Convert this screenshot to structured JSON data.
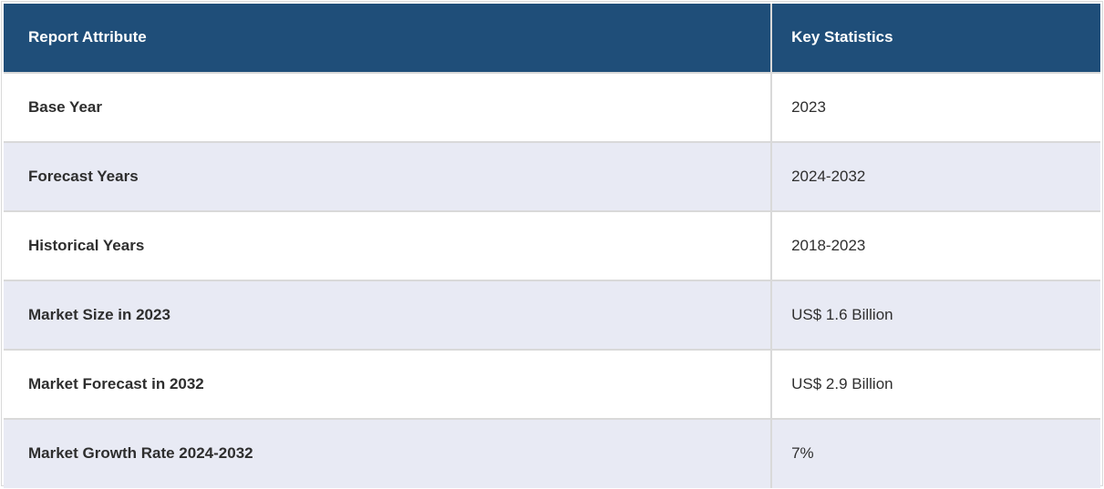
{
  "chart_data": {
    "type": "table",
    "columns": [
      "Report Attribute",
      "Key Statistics"
    ],
    "rows": [
      [
        "Base Year",
        "2023"
      ],
      [
        "Forecast Years",
        "2024-2032"
      ],
      [
        "Historical Years",
        "2018-2023"
      ],
      [
        "Market Size in 2023",
        "US$ 1.6 Billion"
      ],
      [
        "Market Forecast in 2032",
        "US$ 2.9 Billion"
      ],
      [
        "Market Growth Rate 2024-2032",
        "7%"
      ]
    ],
    "layout_hints": {
      "header_background": "#1F4E79",
      "alternate_row_background": "#E8EAF4",
      "row_background": "#FFFFFF",
      "border_color": "#D9D9D9",
      "column_widths_percent": [
        70,
        30
      ]
    }
  },
  "table": {
    "header": {
      "attribute_label": "Report Attribute",
      "statistics_label": "Key Statistics"
    },
    "rows": [
      {
        "attribute": "Base Year",
        "value": "2023"
      },
      {
        "attribute": "Forecast Years",
        "value": "2024-2032"
      },
      {
        "attribute": "Historical Years",
        "value": "2018-2023"
      },
      {
        "attribute": "Market Size in 2023",
        "value": "US$ 1.6 Billion"
      },
      {
        "attribute": "Market Forecast in 2032",
        "value": "US$ 2.9 Billion"
      },
      {
        "attribute": "Market Growth Rate 2024-2032",
        "value": "7%"
      }
    ]
  },
  "colors": {
    "header_bg": "#1F4E79",
    "header_text": "#FFFFFF",
    "row_bg": "#FFFFFF",
    "row_alt_bg": "#E8EAF4",
    "border": "#D9D9D9",
    "body_text": "#2E2E2E"
  }
}
